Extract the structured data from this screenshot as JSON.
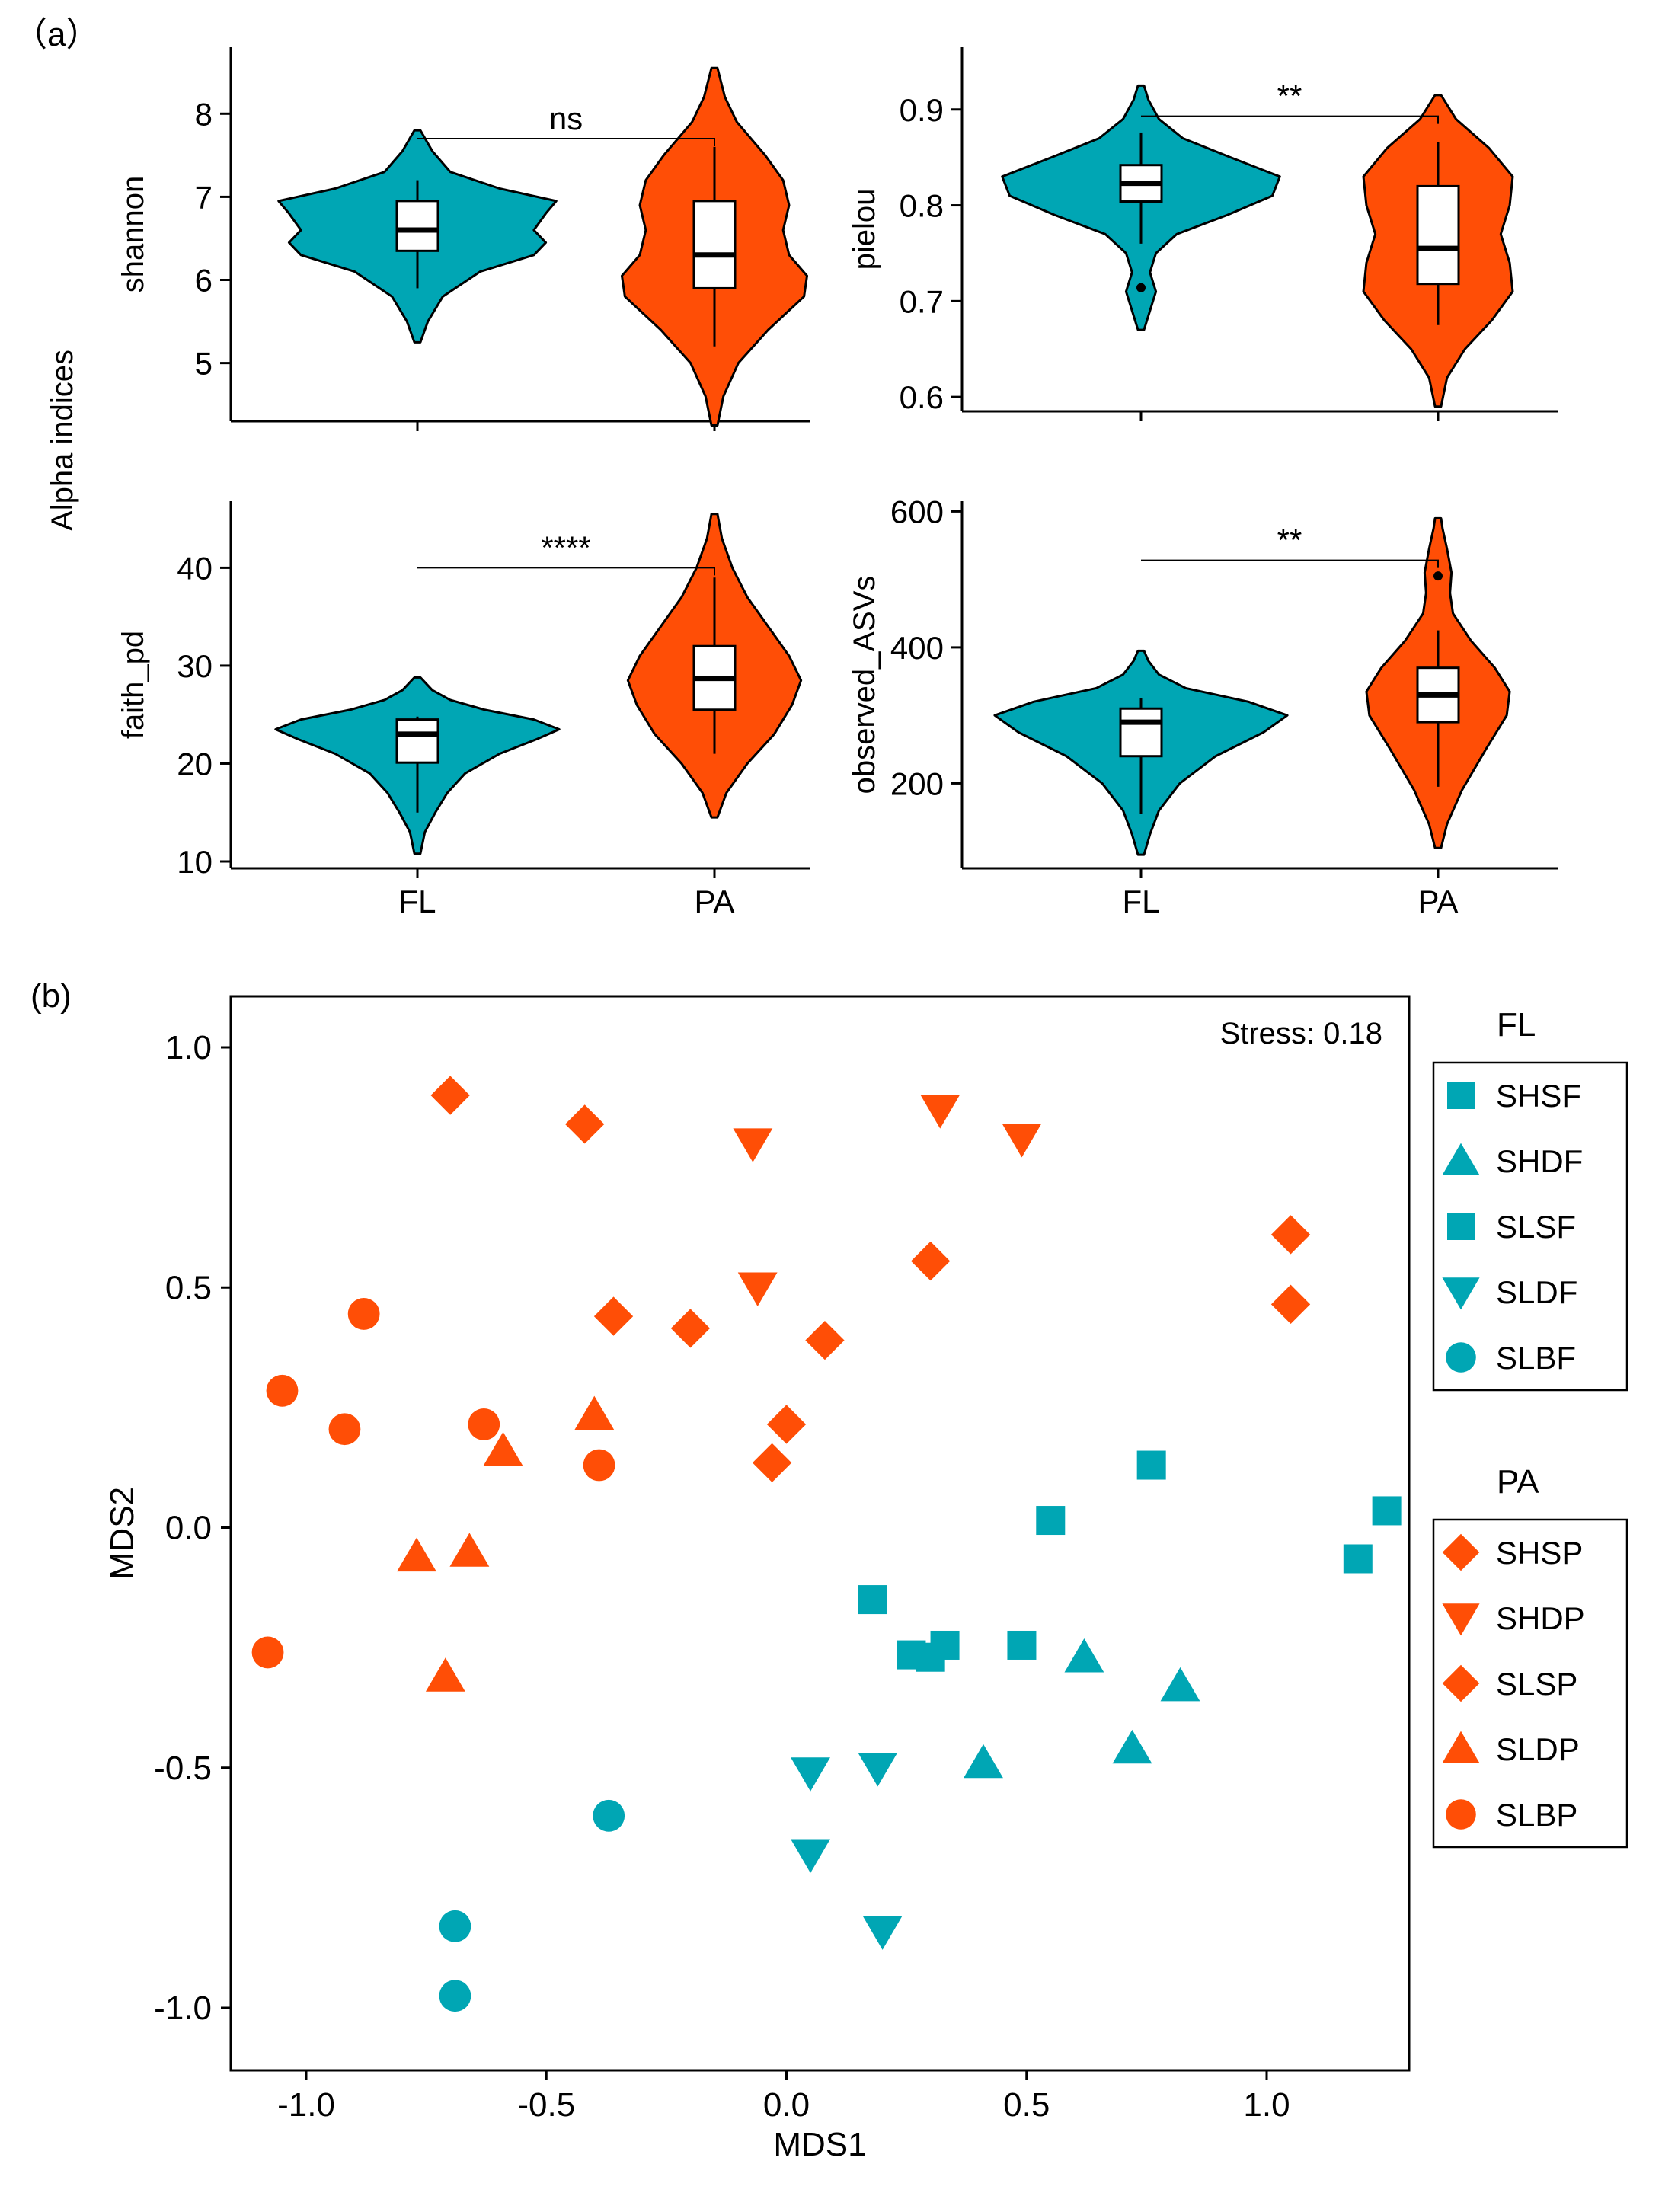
{
  "figure": {
    "panel_a_label": "（a）",
    "panel_b_label": "(b)",
    "colors": {
      "FL": "#00A6B4",
      "PA": "#FF4E06",
      "box": "#ffffff",
      "line": "#000000"
    }
  },
  "chart_data": [
    {
      "type": "violin",
      "id": "shannon",
      "ylabel": "shannon",
      "shared_ylabel": "Alpha indices",
      "categories": [
        "FL",
        "PA"
      ],
      "show_x_tick_labels": false,
      "ylim": [
        4.3,
        8.8
      ],
      "yticks": [
        5,
        6,
        7,
        8
      ],
      "ytick_labels": [
        "5",
        "6",
        "7",
        "8"
      ],
      "significance": "ns",
      "sig_y": 7.7,
      "groups": [
        {
          "name": "FL",
          "violin_min": 5.25,
          "violin_max": 7.8,
          "q1": 6.35,
          "median": 6.6,
          "q3": 6.95,
          "whisker_low": 5.9,
          "whisker_high": 7.2,
          "outliers": [],
          "density": [
            [
              5.25,
              0.02
            ],
            [
              5.5,
              0.07
            ],
            [
              5.8,
              0.17
            ],
            [
              6.1,
              0.42
            ],
            [
              6.3,
              0.78
            ],
            [
              6.45,
              0.86
            ],
            [
              6.6,
              0.78
            ],
            [
              6.8,
              0.86
            ],
            [
              6.95,
              0.93
            ],
            [
              7.1,
              0.55
            ],
            [
              7.3,
              0.22
            ],
            [
              7.55,
              0.1
            ],
            [
              7.8,
              0.02
            ]
          ]
        },
        {
          "name": "PA",
          "violin_min": 4.25,
          "violin_max": 8.55,
          "q1": 5.9,
          "median": 6.3,
          "q3": 6.95,
          "whisker_low": 5.2,
          "whisker_high": 7.6,
          "outliers": [],
          "density": [
            [
              4.25,
              0.02
            ],
            [
              4.6,
              0.06
            ],
            [
              5.0,
              0.16
            ],
            [
              5.4,
              0.36
            ],
            [
              5.8,
              0.6
            ],
            [
              6.05,
              0.62
            ],
            [
              6.3,
              0.5
            ],
            [
              6.6,
              0.46
            ],
            [
              6.9,
              0.5
            ],
            [
              7.2,
              0.46
            ],
            [
              7.5,
              0.34
            ],
            [
              7.9,
              0.15
            ],
            [
              8.2,
              0.07
            ],
            [
              8.55,
              0.02
            ]
          ]
        }
      ]
    },
    {
      "type": "violin",
      "id": "pielou",
      "ylabel": "pielou",
      "categories": [
        "FL",
        "PA"
      ],
      "show_x_tick_labels": false,
      "ylim": [
        0.585,
        0.965
      ],
      "yticks": [
        0.6,
        0.7,
        0.8,
        0.9
      ],
      "ytick_labels": [
        "0.6",
        "0.7",
        "0.8",
        "0.9"
      ],
      "significance": "**",
      "sig_y": 0.893,
      "groups": [
        {
          "name": "FL",
          "violin_min": 0.67,
          "violin_max": 0.925,
          "q1": 0.804,
          "median": 0.823,
          "q3": 0.842,
          "whisker_low": 0.76,
          "whisker_high": 0.876,
          "outliers": [
            0.714
          ],
          "density": [
            [
              0.67,
              0.02
            ],
            [
              0.69,
              0.06
            ],
            [
              0.71,
              0.1
            ],
            [
              0.73,
              0.06
            ],
            [
              0.75,
              0.1
            ],
            [
              0.77,
              0.24
            ],
            [
              0.79,
              0.58
            ],
            [
              0.81,
              0.88
            ],
            [
              0.83,
              0.93
            ],
            [
              0.85,
              0.6
            ],
            [
              0.87,
              0.28
            ],
            [
              0.89,
              0.12
            ],
            [
              0.91,
              0.05
            ],
            [
              0.925,
              0.02
            ]
          ]
        },
        {
          "name": "PA",
          "violin_min": 0.59,
          "violin_max": 0.915,
          "q1": 0.718,
          "median": 0.755,
          "q3": 0.82,
          "whisker_low": 0.675,
          "whisker_high": 0.866,
          "outliers": [],
          "density": [
            [
              0.59,
              0.02
            ],
            [
              0.62,
              0.06
            ],
            [
              0.65,
              0.18
            ],
            [
              0.68,
              0.36
            ],
            [
              0.71,
              0.5
            ],
            [
              0.74,
              0.48
            ],
            [
              0.77,
              0.42
            ],
            [
              0.8,
              0.48
            ],
            [
              0.83,
              0.5
            ],
            [
              0.86,
              0.34
            ],
            [
              0.89,
              0.12
            ],
            [
              0.915,
              0.02
            ]
          ]
        }
      ]
    },
    {
      "type": "violin",
      "id": "faith_pd",
      "ylabel": "faith_pd",
      "categories": [
        "FL",
        "PA"
      ],
      "show_x_tick_labels": true,
      "ylim": [
        9.3,
        46.8
      ],
      "yticks": [
        10,
        20,
        30,
        40
      ],
      "ytick_labels": [
        "10",
        "20",
        "30",
        "40"
      ],
      "significance": "****",
      "sig_y": 40,
      "groups": [
        {
          "name": "FL",
          "violin_min": 10.8,
          "violin_max": 28.8,
          "q1": 20.1,
          "median": 23.0,
          "q3": 24.5,
          "whisker_low": 15.0,
          "whisker_high": 24.8,
          "outliers": [],
          "density": [
            [
              10.8,
              0.02
            ],
            [
              13,
              0.05
            ],
            [
              15,
              0.12
            ],
            [
              17,
              0.2
            ],
            [
              19,
              0.32
            ],
            [
              21,
              0.55
            ],
            [
              22.5,
              0.8
            ],
            [
              23.5,
              0.95
            ],
            [
              24.5,
              0.78
            ],
            [
              25.5,
              0.45
            ],
            [
              26.5,
              0.22
            ],
            [
              27.5,
              0.1
            ],
            [
              28.8,
              0.02
            ]
          ]
        },
        {
          "name": "PA",
          "violin_min": 14.5,
          "violin_max": 45.5,
          "q1": 25.5,
          "median": 28.7,
          "q3": 32.0,
          "whisker_low": 21.0,
          "whisker_high": 39.0,
          "outliers": [],
          "density": [
            [
              14.5,
              0.02
            ],
            [
              17,
              0.08
            ],
            [
              20,
              0.22
            ],
            [
              23,
              0.4
            ],
            [
              26,
              0.52
            ],
            [
              28.5,
              0.58
            ],
            [
              31,
              0.5
            ],
            [
              34,
              0.36
            ],
            [
              37,
              0.22
            ],
            [
              40,
              0.12
            ],
            [
              43,
              0.05
            ],
            [
              45.5,
              0.02
            ]
          ]
        }
      ]
    },
    {
      "type": "violin",
      "id": "observed_ASVs",
      "ylabel": "observed_ASVs",
      "categories": [
        "FL",
        "PA"
      ],
      "show_x_tick_labels": true,
      "ylim": [
        75,
        615
      ],
      "yticks": [
        200,
        400,
        600
      ],
      "ytick_labels": [
        "200",
        "400",
        "600"
      ],
      "significance": "**",
      "sig_y": 528,
      "groups": [
        {
          "name": "FL",
          "violin_min": 95,
          "violin_max": 395,
          "q1": 240,
          "median": 290,
          "q3": 310,
          "whisker_low": 155,
          "whisker_high": 325,
          "outliers": [],
          "density": [
            [
              95,
              0.02
            ],
            [
              125,
              0.06
            ],
            [
              160,
              0.12
            ],
            [
              200,
              0.26
            ],
            [
              240,
              0.5
            ],
            [
              275,
              0.82
            ],
            [
              300,
              0.98
            ],
            [
              320,
              0.72
            ],
            [
              340,
              0.3
            ],
            [
              360,
              0.12
            ],
            [
              380,
              0.05
            ],
            [
              395,
              0.02
            ]
          ]
        },
        {
          "name": "PA",
          "violin_min": 105,
          "violin_max": 590,
          "q1": 290,
          "median": 330,
          "q3": 370,
          "whisker_low": 195,
          "whisker_high": 425,
          "outliers": [
            505
          ],
          "density": [
            [
              105,
              0.02
            ],
            [
              140,
              0.06
            ],
            [
              190,
              0.16
            ],
            [
              250,
              0.32
            ],
            [
              300,
              0.46
            ],
            [
              335,
              0.48
            ],
            [
              370,
              0.38
            ],
            [
              410,
              0.22
            ],
            [
              450,
              0.1
            ],
            [
              480,
              0.08
            ],
            [
              510,
              0.09
            ],
            [
              545,
              0.06
            ],
            [
              575,
              0.03
            ],
            [
              590,
              0.02
            ]
          ]
        }
      ]
    },
    {
      "type": "scatter",
      "id": "nmds",
      "xlabel": "MDS1",
      "ylabel": "MDS2",
      "xlim": [
        -1.15,
        1.3
      ],
      "ylim": [
        -1.15,
        1.12
      ],
      "xticks": [
        -1.0,
        -0.5,
        0.0,
        0.5,
        1.0
      ],
      "xtick_labels": [
        "-1.0",
        "-0.5",
        "0.0",
        "0.5",
        "1.0"
      ],
      "yticks": [
        -1.0,
        -0.5,
        0.0,
        0.5,
        1.0
      ],
      "ytick_labels": [
        "-1.0",
        "-0.5",
        "0.0",
        "0.5",
        "1.0"
      ],
      "stress_label": "Stress: 0.18",
      "legend_placement": "right",
      "legend": [
        {
          "title": "FL",
          "entries": [
            {
              "label": "SHSF",
              "shape": "square",
              "color": "#00A6B4"
            },
            {
              "label": "SHDF",
              "shape": "triangle-up",
              "color": "#00A6B4"
            },
            {
              "label": "SLSF",
              "shape": "square",
              "color": "#00A6B4"
            },
            {
              "label": "SLDF",
              "shape": "triangle-down",
              "color": "#00A6B4"
            },
            {
              "label": "SLBF",
              "shape": "circle",
              "color": "#00A6B4"
            }
          ]
        },
        {
          "title": "PA",
          "entries": [
            {
              "label": "SHSP",
              "shape": "diamond",
              "color": "#FF4E06"
            },
            {
              "label": "SHDP",
              "shape": "triangle-down",
              "color": "#FF4E06"
            },
            {
              "label": "SLSP",
              "shape": "diamond",
              "color": "#FF4E06"
            },
            {
              "label": "SLDP",
              "shape": "triangle-up",
              "color": "#FF4E06"
            },
            {
              "label": "SLBP",
              "shape": "circle",
              "color": "#FF4E06"
            }
          ]
        }
      ],
      "points": [
        {
          "x": -0.7,
          "y": 0.9,
          "shape": "diamond",
          "color": "#FF4E06"
        },
        {
          "x": -0.42,
          "y": 0.84,
          "shape": "diamond",
          "color": "#FF4E06"
        },
        {
          "x": 1.05,
          "y": 0.61,
          "shape": "diamond",
          "color": "#FF4E06"
        },
        {
          "x": 1.05,
          "y": 0.465,
          "shape": "diamond",
          "color": "#FF4E06"
        },
        {
          "x": 0.3,
          "y": 0.555,
          "shape": "diamond",
          "color": "#FF4E06"
        },
        {
          "x": -0.36,
          "y": 0.44,
          "shape": "diamond",
          "color": "#FF4E06"
        },
        {
          "x": -0.2,
          "y": 0.415,
          "shape": "diamond",
          "color": "#FF4E06"
        },
        {
          "x": 0.08,
          "y": 0.39,
          "shape": "diamond",
          "color": "#FF4E06"
        },
        {
          "x": 0.0,
          "y": 0.215,
          "shape": "diamond",
          "color": "#FF4E06"
        },
        {
          "x": -0.03,
          "y": 0.135,
          "shape": "diamond",
          "color": "#FF4E06"
        },
        {
          "x": 0.32,
          "y": 0.87,
          "shape": "triangle-down",
          "color": "#FF4E06"
        },
        {
          "x": 0.49,
          "y": 0.81,
          "shape": "triangle-down",
          "color": "#FF4E06"
        },
        {
          "x": -0.07,
          "y": 0.8,
          "shape": "triangle-down",
          "color": "#FF4E06"
        },
        {
          "x": -0.06,
          "y": 0.5,
          "shape": "triangle-down",
          "color": "#FF4E06"
        },
        {
          "x": -0.4,
          "y": 0.235,
          "shape": "triangle-up",
          "color": "#FF4E06"
        },
        {
          "x": -0.59,
          "y": 0.16,
          "shape": "triangle-up",
          "color": "#FF4E06"
        },
        {
          "x": -0.77,
          "y": -0.06,
          "shape": "triangle-up",
          "color": "#FF4E06"
        },
        {
          "x": -0.66,
          "y": -0.05,
          "shape": "triangle-up",
          "color": "#FF4E06"
        },
        {
          "x": -0.71,
          "y": -0.31,
          "shape": "triangle-up",
          "color": "#FF4E06"
        },
        {
          "x": -0.88,
          "y": 0.445,
          "shape": "circle",
          "color": "#FF4E06"
        },
        {
          "x": -1.05,
          "y": 0.285,
          "shape": "circle",
          "color": "#FF4E06"
        },
        {
          "x": -0.92,
          "y": 0.205,
          "shape": "circle",
          "color": "#FF4E06"
        },
        {
          "x": -0.63,
          "y": 0.215,
          "shape": "circle",
          "color": "#FF4E06"
        },
        {
          "x": -0.39,
          "y": 0.13,
          "shape": "circle",
          "color": "#FF4E06"
        },
        {
          "x": -1.08,
          "y": -0.26,
          "shape": "circle",
          "color": "#FF4E06"
        },
        {
          "x": 0.76,
          "y": 0.13,
          "shape": "square",
          "color": "#00A6B4"
        },
        {
          "x": 1.25,
          "y": 0.035,
          "shape": "square",
          "color": "#00A6B4"
        },
        {
          "x": 0.55,
          "y": 0.015,
          "shape": "square",
          "color": "#00A6B4"
        },
        {
          "x": 1.19,
          "y": -0.065,
          "shape": "square",
          "color": "#00A6B4"
        },
        {
          "x": 0.18,
          "y": -0.15,
          "shape": "square",
          "color": "#00A6B4"
        },
        {
          "x": 0.26,
          "y": -0.265,
          "shape": "square",
          "color": "#00A6B4"
        },
        {
          "x": 0.3,
          "y": -0.27,
          "shape": "square",
          "color": "#00A6B4"
        },
        {
          "x": 0.33,
          "y": -0.245,
          "shape": "square",
          "color": "#00A6B4"
        },
        {
          "x": 0.49,
          "y": -0.245,
          "shape": "square",
          "color": "#00A6B4"
        },
        {
          "x": 0.62,
          "y": -0.27,
          "shape": "triangle-up",
          "color": "#00A6B4"
        },
        {
          "x": 0.82,
          "y": -0.33,
          "shape": "triangle-up",
          "color": "#00A6B4"
        },
        {
          "x": 0.72,
          "y": -0.46,
          "shape": "triangle-up",
          "color": "#00A6B4"
        },
        {
          "x": 0.41,
          "y": -0.49,
          "shape": "triangle-up",
          "color": "#00A6B4"
        },
        {
          "x": 0.05,
          "y": -0.51,
          "shape": "triangle-down",
          "color": "#00A6B4"
        },
        {
          "x": 0.19,
          "y": -0.5,
          "shape": "triangle-down",
          "color": "#00A6B4"
        },
        {
          "x": 0.05,
          "y": -0.68,
          "shape": "triangle-down",
          "color": "#00A6B4"
        },
        {
          "x": 0.2,
          "y": -0.84,
          "shape": "triangle-down",
          "color": "#00A6B4"
        },
        {
          "x": -0.37,
          "y": -0.6,
          "shape": "circle",
          "color": "#00A6B4"
        },
        {
          "x": -0.69,
          "y": -0.83,
          "shape": "circle",
          "color": "#00A6B4"
        },
        {
          "x": -0.69,
          "y": -0.975,
          "shape": "circle",
          "color": "#00A6B4"
        }
      ]
    }
  ]
}
